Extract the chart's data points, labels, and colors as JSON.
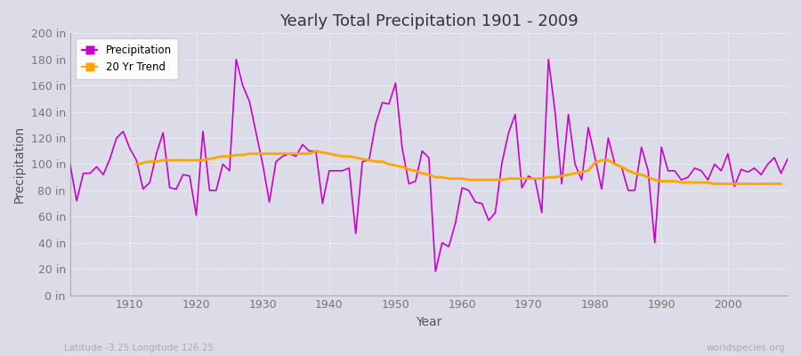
{
  "title": "Yearly Total Precipitation 1901 - 2009",
  "xlabel": "Year",
  "ylabel": "Precipitation",
  "subtitle_left": "Latitude -3.25 Longitude 126.25",
  "subtitle_right": "worldspecies.org",
  "bg_color": "#dcdce8",
  "plot_bg_color": "#dcdce8",
  "precip_color": "#cc00cc",
  "trend_color": "#ffa500",
  "ylim": [
    0,
    200
  ],
  "yticks": [
    0,
    20,
    40,
    60,
    80,
    100,
    120,
    140,
    160,
    180,
    200
  ],
  "xlim": [
    1901,
    2009
  ],
  "xticks": [
    1910,
    1920,
    1930,
    1940,
    1950,
    1960,
    1970,
    1980,
    1990,
    2000
  ],
  "years": [
    1901,
    1902,
    1903,
    1904,
    1905,
    1906,
    1907,
    1908,
    1909,
    1910,
    1911,
    1912,
    1913,
    1914,
    1915,
    1916,
    1917,
    1918,
    1919,
    1920,
    1921,
    1922,
    1923,
    1924,
    1925,
    1926,
    1927,
    1928,
    1929,
    1930,
    1931,
    1932,
    1933,
    1934,
    1935,
    1936,
    1937,
    1938,
    1939,
    1940,
    1941,
    1942,
    1943,
    1944,
    1945,
    1946,
    1947,
    1948,
    1949,
    1950,
    1951,
    1952,
    1953,
    1954,
    1955,
    1956,
    1957,
    1958,
    1959,
    1960,
    1961,
    1962,
    1963,
    1964,
    1965,
    1966,
    1967,
    1968,
    1969,
    1970,
    1971,
    1972,
    1973,
    1974,
    1975,
    1976,
    1977,
    1978,
    1979,
    1980,
    1981,
    1982,
    1983,
    1984,
    1985,
    1986,
    1987,
    1988,
    1989,
    1990,
    1991,
    1992,
    1993,
    1994,
    1995,
    1996,
    1997,
    1998,
    1999,
    2000,
    2001,
    2002,
    2003,
    2004,
    2005,
    2006,
    2007,
    2008,
    2009
  ],
  "precip": [
    100,
    72,
    93,
    93,
    98,
    92,
    104,
    120,
    125,
    112,
    103,
    81,
    86,
    108,
    124,
    82,
    81,
    92,
    91,
    61,
    125,
    80,
    80,
    100,
    95,
    180,
    160,
    148,
    124,
    100,
    71,
    102,
    106,
    108,
    106,
    115,
    110,
    110,
    70,
    95,
    95,
    95,
    97,
    47,
    102,
    103,
    131,
    147,
    146,
    162,
    112,
    85,
    87,
    110,
    105,
    18,
    40,
    37,
    55,
    82,
    80,
    71,
    70,
    57,
    63,
    101,
    124,
    138,
    82,
    91,
    88,
    63,
    180,
    140,
    85,
    138,
    100,
    88,
    128,
    105,
    81,
    120,
    100,
    98,
    80,
    80,
    113,
    95,
    40,
    113,
    95,
    95,
    88,
    90,
    97,
    95,
    88,
    100,
    95,
    108,
    83,
    96,
    94,
    97,
    92,
    100,
    105,
    93,
    104
  ],
  "trend": [
    null,
    null,
    null,
    null,
    null,
    null,
    null,
    null,
    null,
    null,
    100,
    101,
    102,
    102,
    103,
    103,
    103,
    103,
    103,
    103,
    103,
    104,
    105,
    106,
    106,
    107,
    107,
    108,
    108,
    108,
    108,
    108,
    108,
    108,
    108,
    108,
    108,
    110,
    109,
    108,
    107,
    106,
    106,
    105,
    104,
    103,
    102,
    102,
    100,
    99,
    98,
    96,
    95,
    93,
    92,
    90,
    90,
    89,
    89,
    89,
    88,
    88,
    88,
    88,
    88,
    88,
    89,
    89,
    89,
    89,
    89,
    89,
    90,
    90,
    91,
    92,
    93,
    94,
    95,
    101,
    103,
    103,
    100,
    98,
    95,
    93,
    92,
    90,
    88,
    87,
    87,
    87,
    86,
    86,
    86,
    86,
    86,
    85,
    85,
    85,
    85,
    85,
    85,
    85,
    85,
    85,
    85,
    85,
    null
  ]
}
